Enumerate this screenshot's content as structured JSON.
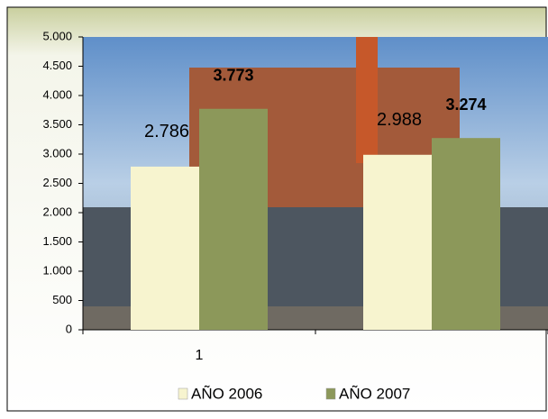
{
  "chart_data": {
    "type": "bar",
    "categories": [
      "1",
      null
    ],
    "series": [
      {
        "name": "AÑO 2006",
        "color": "#f7f4cf",
        "values": [
          2786,
          2988
        ],
        "value_labels": [
          "2.786",
          "2.988"
        ]
      },
      {
        "name": "AÑO 2007",
        "color": "#8c985a",
        "values": [
          3773,
          3274
        ],
        "value_labels": [
          "3.773",
          "3.274"
        ]
      }
    ],
    "ylim": [
      0,
      5000
    ],
    "yticks": [
      0,
      500,
      {
        "value": 1000,
        "label": "1.000"
      },
      {
        "value": 1500,
        "label": "1.500"
      },
      {
        "value": 2000,
        "label": "2.000"
      },
      {
        "value": 2500,
        "label": "2.500"
      },
      {
        "value": 3000,
        "label": "3.000"
      },
      {
        "value": 3500,
        "label": "3.500"
      },
      {
        "value": 4000,
        "label": "4.000"
      },
      {
        "value": 4500,
        "label": "4.500"
      },
      {
        "value": 5000,
        "label": "5.000"
      }
    ],
    "legend": "bottom"
  }
}
